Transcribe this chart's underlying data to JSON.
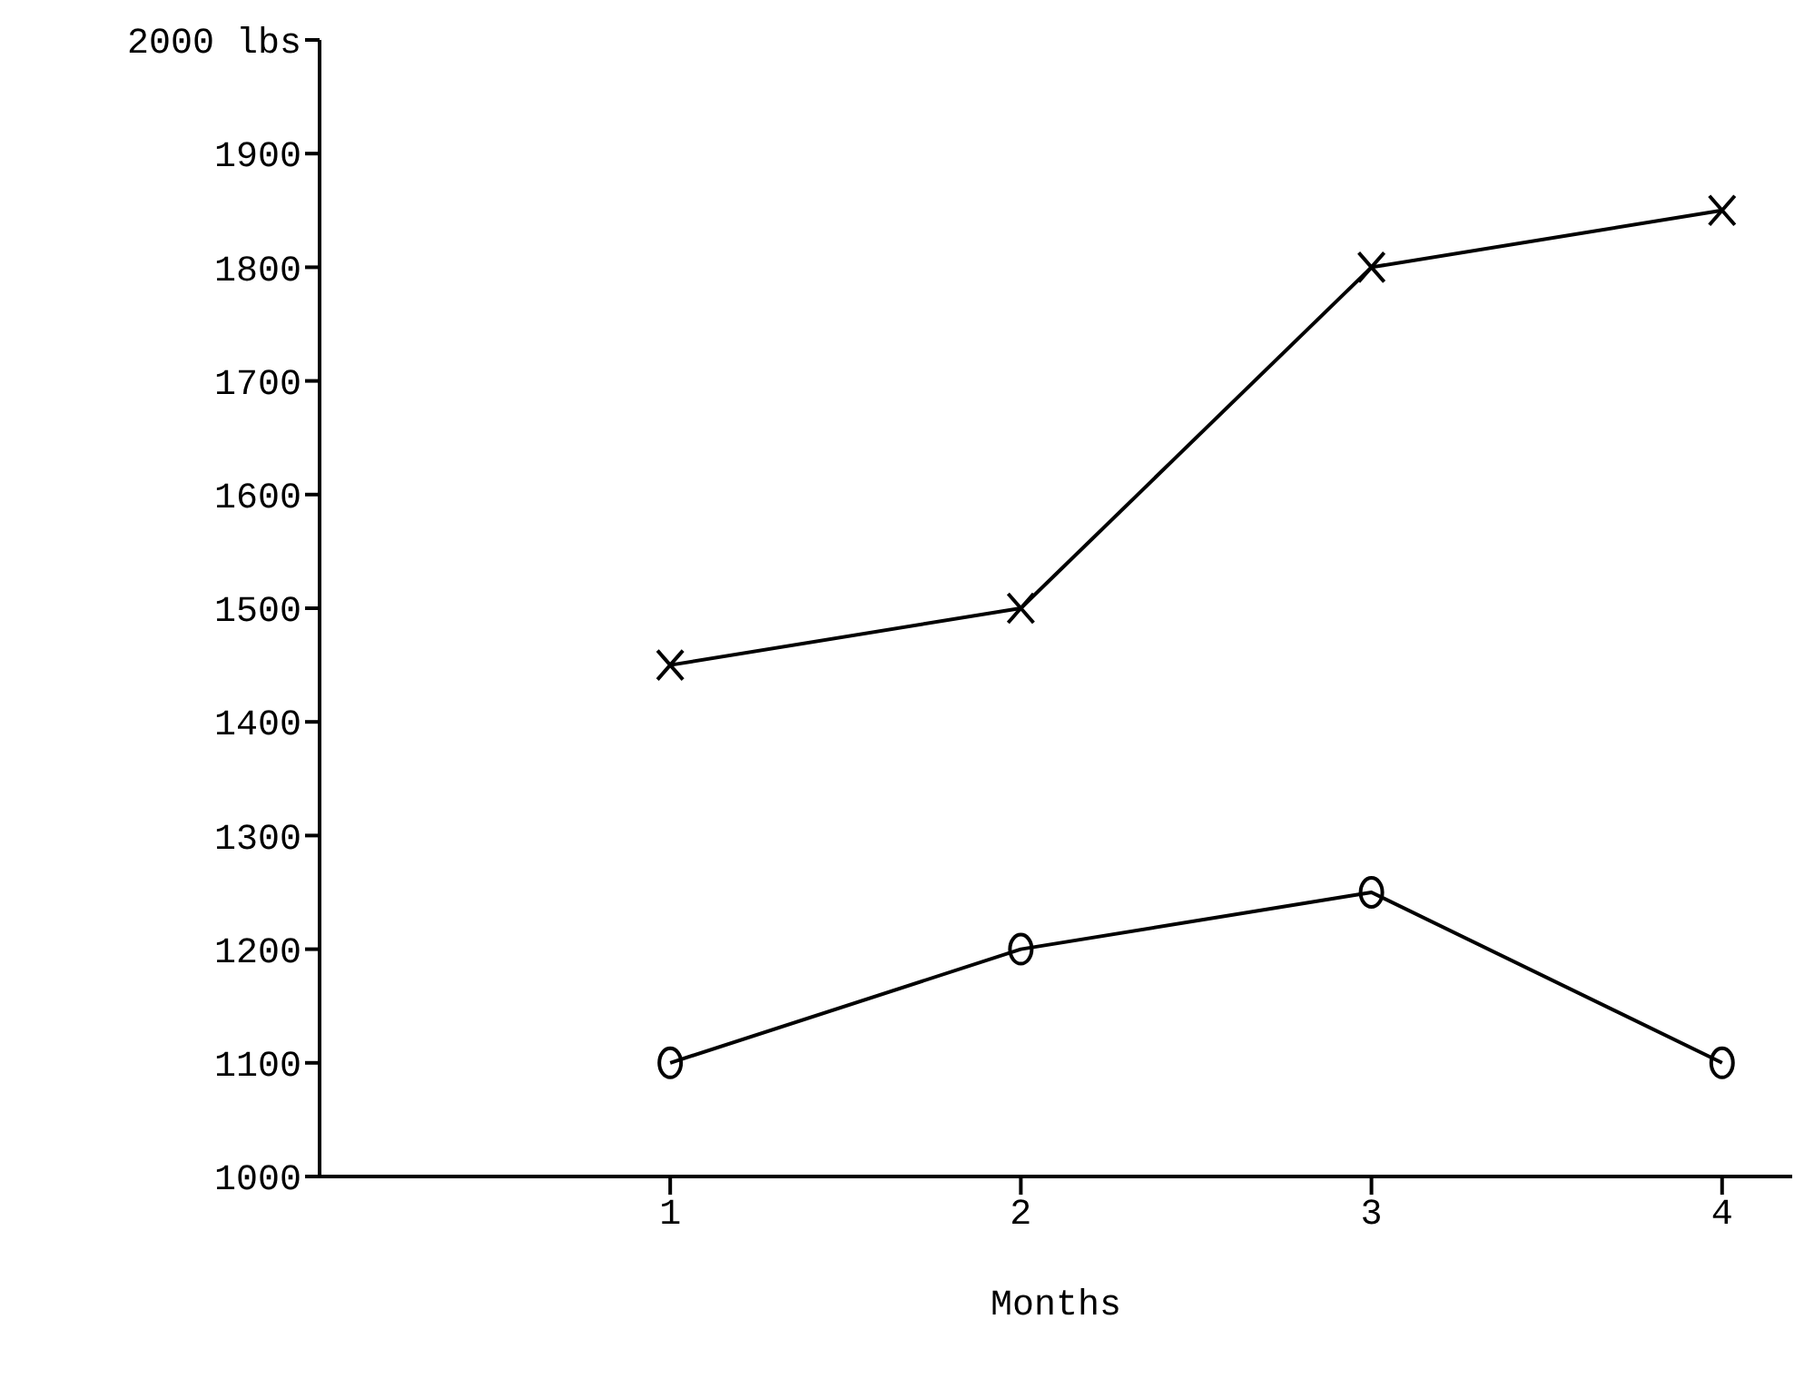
{
  "chart_data": {
    "type": "line",
    "xlabel": "Months",
    "x": [
      1,
      2,
      3,
      4
    ],
    "series": [
      {
        "color": "#000000",
        "marker": "cross",
        "values": [
          1450,
          1500,
          1800,
          1850
        ]
      },
      {
        "color": "#000000",
        "marker": "circle",
        "values": [
          1100,
          1200,
          1250,
          1100
        ]
      }
    ],
    "xlim": [
      0,
      4.2
    ],
    "xticks": [
      1,
      2,
      3,
      4
    ],
    "ylim": [
      1000,
      2000
    ],
    "yticks": [
      1000,
      1100,
      1200,
      1300,
      1400,
      1500,
      1600,
      1700,
      1800,
      1900,
      {
        "value": 2000,
        "label": "2000 lbs"
      }
    ],
    "grid": false,
    "legend": false,
    "line_style": "solid"
  }
}
